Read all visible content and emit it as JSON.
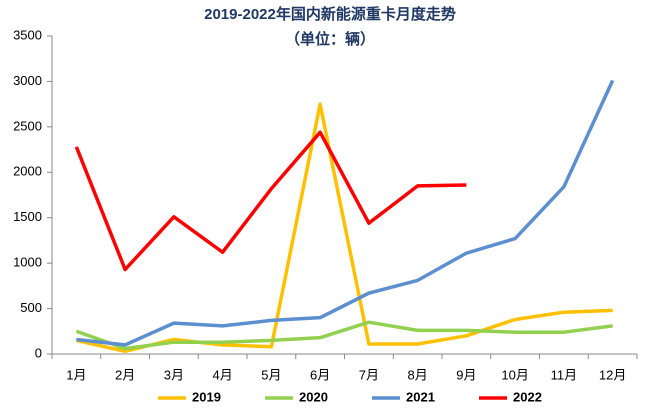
{
  "chart_data": {
    "type": "line",
    "title": "2019-2022年国内新能源重卡月度走势",
    "subtitle": "（单位：辆）",
    "categories": [
      "1月",
      "2月",
      "3月",
      "4月",
      "5月",
      "6月",
      "7月",
      "8月",
      "9月",
      "10月",
      "11月",
      "12月"
    ],
    "series": [
      {
        "name": "2019",
        "color": "#ffc000",
        "values": [
          150,
          30,
          160,
          100,
          80,
          2750,
          110,
          110,
          200,
          380,
          460,
          480
        ]
      },
      {
        "name": "2020",
        "color": "#92d050",
        "values": [
          250,
          60,
          130,
          130,
          150,
          180,
          350,
          260,
          260,
          240,
          240,
          310
        ]
      },
      {
        "name": "2021",
        "color": "#5b8fd0",
        "values": [
          160,
          100,
          340,
          310,
          370,
          400,
          670,
          810,
          1110,
          1270,
          1840,
          3010
        ]
      },
      {
        "name": "2022",
        "color": "#ff0000",
        "values": [
          2280,
          930,
          1510,
          1120,
          1820,
          2440,
          1440,
          1850,
          1860,
          null,
          null,
          null
        ]
      }
    ],
    "ylim": [
      0,
      3500
    ],
    "yticks": [
      0,
      500,
      1000,
      1500,
      2000,
      2500,
      3000,
      3500
    ],
    "grid": false,
    "legend": "bottom"
  }
}
